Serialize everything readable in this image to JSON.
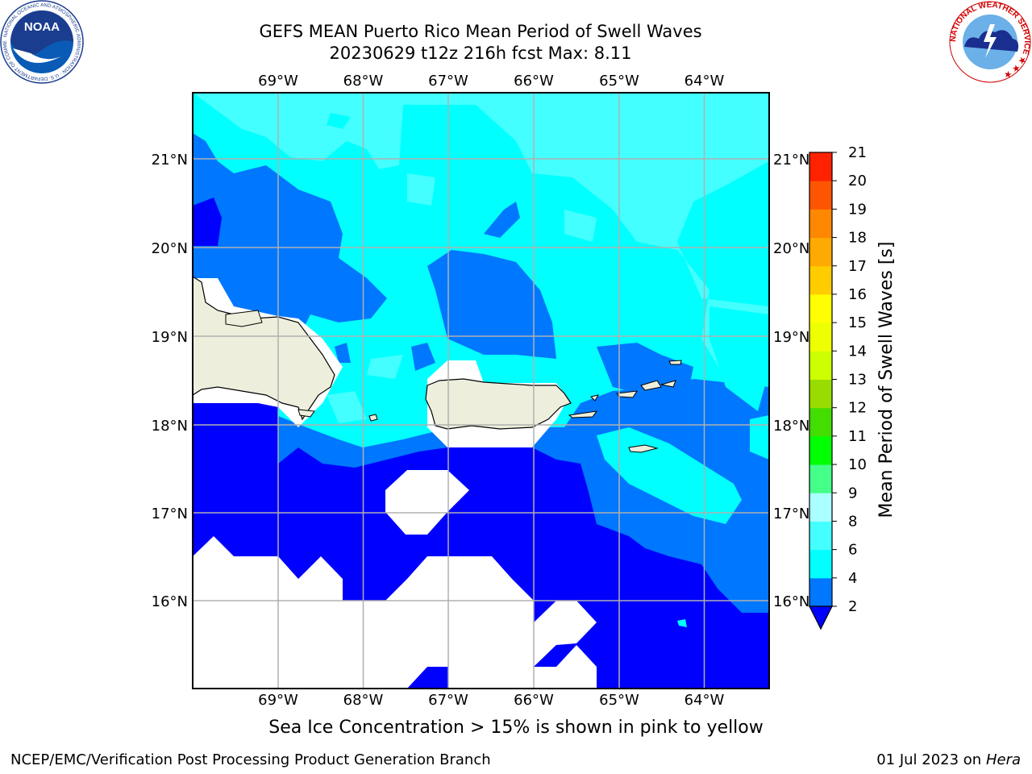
{
  "title": {
    "line1": "GEFS MEAN Puerto Rico Mean Period of Swell Waves",
    "line2": "20230629 t12z 216h fcst   Max: 8.11"
  },
  "map": {
    "lon_labels": [
      "69°W",
      "68°W",
      "67°W",
      "66°W",
      "65°W",
      "64°W"
    ],
    "lat_labels": [
      "21°N",
      "20°N",
      "19°N",
      "18°N",
      "17°N",
      "16°N"
    ],
    "land_color": "#eeeedd",
    "grid_color": "#b0b0b0"
  },
  "colorbar": {
    "label": "Mean Period of Swell Waves [s]",
    "ticks": [
      "2",
      "4",
      "6",
      "8",
      "9",
      "10",
      "11",
      "12",
      "13",
      "14",
      "15",
      "16",
      "17",
      "18",
      "19",
      "20",
      "21"
    ],
    "colors": [
      "#0000ff",
      "#0077ff",
      "#00ffff",
      "#44ffff",
      "#aaffff",
      "#44ff88",
      "#00ff00",
      "#44dd00",
      "#99dd00",
      "#ccff00",
      "#eeff00",
      "#ffff00",
      "#ffcc00",
      "#ffaa00",
      "#ff8800",
      "#ff5500",
      "#ff2200",
      "#ff0000"
    ]
  },
  "subtitle": "Sea Ice Concentration > 15% is shown in pink to yellow",
  "footer": {
    "left": "NCEP/EMC/Verification Post Processing Product Generation Branch",
    "date": "01 Jul 2023 on ",
    "host": "Hera"
  },
  "logos": {
    "noaa_text": "NOAA",
    "noaa_ring": "NATIONAL OCEANIC AND ATMOSPHERIC ADMINISTRATION · U.S. DEPARTMENT OF COMMERCE ·",
    "nws_ring": "NATIONAL WEATHER SERVICE ★ ★ ★"
  }
}
